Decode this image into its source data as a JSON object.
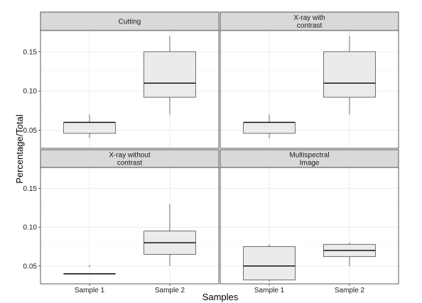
{
  "chart_data": {
    "type": "boxplot",
    "xlabel": "Samples",
    "ylabel": "Percentage/Total",
    "categories": [
      "Sample 1",
      "Sample 2"
    ],
    "y_ticks": [
      0.05,
      0.1,
      0.15
    ],
    "y_tick_labels": [
      "0.05",
      "0.10",
      "0.15"
    ],
    "ylim_top_row": [
      0.027,
      0.177
    ],
    "ylim_bottom_row": [
      0.027,
      0.177
    ],
    "grid": true,
    "facets": [
      {
        "title_lines": [
          "Cutting"
        ],
        "boxes": [
          {
            "category": "Sample 1",
            "min": 0.04,
            "q1": 0.046,
            "median": 0.06,
            "q3": 0.06,
            "max": 0.07,
            "outliers": []
          },
          {
            "category": "Sample 2",
            "min": 0.07,
            "q1": 0.092,
            "median": 0.11,
            "q3": 0.15,
            "max": 0.17,
            "outliers": []
          }
        ]
      },
      {
        "title_lines": [
          "X-ray with",
          "contrast"
        ],
        "boxes": [
          {
            "category": "Sample 1",
            "min": 0.04,
            "q1": 0.046,
            "median": 0.06,
            "q3": 0.06,
            "max": 0.07,
            "outliers": []
          },
          {
            "category": "Sample 2",
            "min": 0.07,
            "q1": 0.092,
            "median": 0.11,
            "q3": 0.15,
            "max": 0.17,
            "outliers": []
          }
        ]
      },
      {
        "title_lines": [
          "X-ray without",
          "contrast"
        ],
        "boxes": [
          {
            "category": "Sample 1",
            "min": 0.04,
            "q1": 0.04,
            "median": 0.04,
            "q3": 0.04,
            "max": 0.04,
            "outliers": [
              0.05
            ]
          },
          {
            "category": "Sample 2",
            "min": 0.05,
            "q1": 0.065,
            "median": 0.08,
            "q3": 0.095,
            "max": 0.13,
            "outliers": []
          }
        ]
      },
      {
        "title_lines": [
          "Multispectral",
          "Image"
        ],
        "boxes": [
          {
            "category": "Sample 1",
            "min": 0.03,
            "q1": 0.032,
            "median": 0.05,
            "q3": 0.075,
            "max": 0.078,
            "outliers": []
          },
          {
            "category": "Sample 2",
            "min": 0.05,
            "q1": 0.062,
            "median": 0.07,
            "q3": 0.078,
            "max": 0.08,
            "outliers": []
          }
        ]
      }
    ],
    "colors": {
      "strip_fill": "#d9d9d9",
      "box_fill": "#ebebeb",
      "box_stroke": "#333333",
      "grid_major": "#e8e8e8",
      "grid_minor": "#f5f5f5",
      "panel_border": "#333333"
    }
  }
}
